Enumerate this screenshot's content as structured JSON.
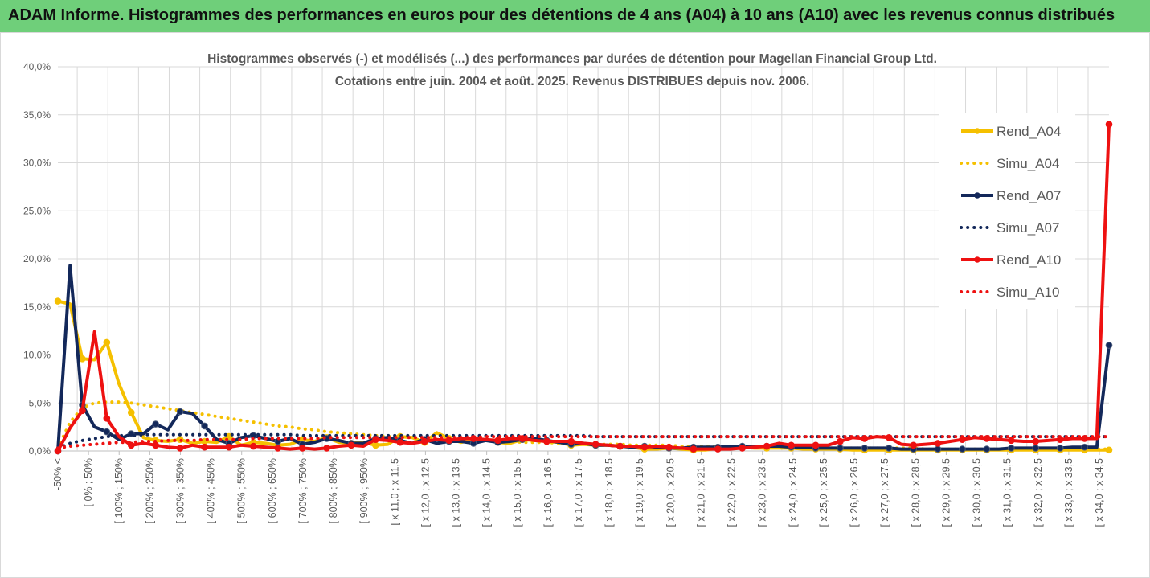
{
  "header": {
    "title": "ADAM Informe. Histogrammes des performances en euros pour des détentions de 4 ans (A04) à 10 ans (A10) avec les revenus connus distribués"
  },
  "colors": {
    "A04": "#f5c000",
    "A07": "#13285a",
    "A10": "#ee1111",
    "grid": "#d9d9d9",
    "title_bg": "#6fcf7a"
  },
  "chart_data": {
    "type": "line",
    "title_line1": "Histogrammes observés (-) et modélisés (...) des performances par durées de détention pour Magellan Financial Group Ltd.",
    "title_line2": "Cotations entre juin. 2004 et août. 2025. Revenus DISTRIBUES depuis nov. 2006.",
    "ylim": [
      0,
      40
    ],
    "yticks": [
      "0,0%",
      "5,0%",
      "10,0%",
      "15,0%",
      "20,0%",
      "25,0%",
      "30,0%",
      "35,0%",
      "40,0%"
    ],
    "x_labels": [
      "-50% <",
      "[ 0% ; 50%",
      "[ 100% ; 150%",
      "[ 200% ; 250%",
      "[ 300% ; 350%",
      "[ 400% ; 450%",
      "[ 500% ; 550%",
      "[ 600% ; 650%",
      "[ 700% ; 750%",
      "[ 800% ; 850%",
      "[ 900% ; 950%",
      "[ x 11,0 ; x 11,5",
      "[ x 12,0 ; x 12,5",
      "[ x 13,0 ; x 13,5",
      "[ x 14,0 ; x 14,5",
      "[ x 15,0 ; x 15,5",
      "[ x 16,0 ; x 16,5",
      "[ x 17,0 ; x 17,5",
      "[ x 18,0 ; x 18,5",
      "[ x 19,0 ; x 19,5",
      "[ x 20,0 ; x 20,5",
      "[ x 21,0 ; x 21,5",
      "[ x 22,0 ; x 22,5",
      "[ x 23,0 ; x 23,5",
      "[ x 24,0 ; x 24,5",
      "[ x 25,0 ; x 25,5",
      "[ x 26,0 ; x 26,5",
      "[ x 27,0 ; x 27,5",
      "[ x 28,0 ; x 28,5",
      "[ x 29,0 ; x 29,5",
      "[ x 30,0 ; x 30,5",
      "[ x 31,0 ; x 31,5",
      "[ x 32,0 ; x 32,5",
      "[ x 33,0 ; x 33,5",
      "[ x 34,0 ; x 34,5"
    ],
    "legend_position": "right",
    "grid": true,
    "series": [
      {
        "name": "Rend_A04",
        "style": "solid",
        "color": "#f5c000",
        "values": [
          15.6,
          15.3,
          9.6,
          9.5,
          11.3,
          7.0,
          4.0,
          1.4,
          1.1,
          1.0,
          1.2,
          0.8,
          1.0,
          0.9,
          1.5,
          0.6,
          0.9,
          0.8,
          0.6,
          0.7,
          1.2,
          1.0,
          1.4,
          0.9,
          0.8,
          0.9,
          0.6,
          0.7,
          1.5,
          1.4,
          0.9,
          1.9,
          1.3,
          0.9,
          1.2,
          1.2,
          0.9,
          0.8,
          1.2,
          1.1,
          1.0,
          0.9,
          0.6,
          0.7,
          0.6,
          0.6,
          0.5,
          0.4,
          0.2,
          0.2,
          0.3,
          0.2,
          0.1,
          0.1,
          0.3,
          0.3,
          0.4,
          0.3,
          0.3,
          0.3,
          0.3,
          0.2,
          0.2,
          0.2,
          0.2,
          0.1,
          0.1,
          0.1,
          0.1,
          0.1,
          0.1,
          0.1,
          0.1,
          0.1,
          0.1,
          0.1,
          0.1,
          0.1,
          0.1,
          0.1,
          0.1,
          0.1,
          0.1,
          0.1,
          0.1,
          0.1,
          0.1
        ]
      },
      {
        "name": "Simu_A04",
        "style": "dotted",
        "color": "#f5c000",
        "values": [
          0.3,
          3.0,
          4.5,
          5.0,
          5.1,
          5.1,
          5.0,
          4.8,
          4.6,
          4.4,
          4.2,
          4.0,
          3.8,
          3.6,
          3.4,
          3.2,
          3.0,
          2.8,
          2.6,
          2.5,
          2.3,
          2.2,
          2.0,
          1.9,
          1.8,
          1.7,
          1.6,
          1.5,
          1.5,
          1.4,
          1.3,
          1.3,
          1.2,
          1.2,
          1.1,
          1.1,
          1.0,
          1.0,
          0.9,
          0.9,
          0.9,
          0.8,
          0.8,
          0.8,
          0.7,
          0.7,
          0.7,
          0.6,
          0.6,
          0.6,
          0.6,
          0.5,
          0.5,
          0.5,
          0.5,
          0.5,
          0.4,
          0.4,
          0.4,
          0.4,
          0.4,
          0.4,
          0.3,
          0.3,
          0.3,
          0.3,
          0.3,
          0.3,
          0.3,
          0.3,
          0.3,
          0.2,
          0.2,
          0.2,
          0.2,
          0.2,
          0.2,
          0.2,
          0.2,
          0.2,
          0.2,
          0.2,
          0.2,
          0.2,
          0.2,
          0.2,
          0.2
        ]
      },
      {
        "name": "Rend_A07",
        "style": "solid",
        "color": "#13285a",
        "values": [
          0.0,
          19.3,
          4.8,
          2.5,
          2.0,
          1.2,
          1.8,
          1.8,
          2.8,
          2.2,
          4.1,
          3.9,
          2.6,
          1.2,
          0.8,
          1.4,
          1.6,
          1.3,
          1.0,
          1.3,
          0.7,
          0.9,
          1.3,
          1.1,
          0.8,
          0.8,
          1.3,
          1.4,
          1.1,
          0.8,
          1.2,
          0.8,
          1.0,
          1.0,
          0.8,
          1.1,
          0.9,
          1.0,
          1.2,
          1.3,
          1.1,
          0.9,
          0.7,
          0.8,
          0.6,
          0.6,
          0.5,
          0.4,
          0.5,
          0.4,
          0.3,
          0.3,
          0.4,
          0.4,
          0.4,
          0.5,
          0.5,
          0.5,
          0.5,
          0.5,
          0.4,
          0.4,
          0.3,
          0.3,
          0.3,
          0.3,
          0.3,
          0.3,
          0.3,
          0.2,
          0.2,
          0.2,
          0.2,
          0.2,
          0.2,
          0.2,
          0.2,
          0.2,
          0.3,
          0.3,
          0.3,
          0.3,
          0.3,
          0.4,
          0.4,
          0.4,
          11.0
        ]
      },
      {
        "name": "Simu_A07",
        "style": "dotted",
        "color": "#13285a",
        "values": [
          0.3,
          0.8,
          1.1,
          1.3,
          1.5,
          1.6,
          1.6,
          1.7,
          1.7,
          1.7,
          1.7,
          1.7,
          1.7,
          1.7,
          1.7,
          1.7,
          1.7,
          1.7,
          1.7,
          1.7,
          1.6,
          1.6,
          1.6,
          1.6,
          1.6,
          1.6,
          1.6,
          1.6,
          1.6,
          1.6,
          1.6,
          1.6,
          1.6,
          1.6,
          1.6,
          1.6,
          1.6,
          1.6,
          1.6,
          1.6,
          1.6,
          1.6,
          1.6,
          1.6,
          1.5,
          1.5,
          1.5,
          1.5,
          1.5,
          1.5,
          1.5,
          1.5,
          1.5,
          1.5,
          1.5,
          1.5,
          1.5,
          1.5,
          1.5,
          1.5,
          1.5,
          1.5,
          1.5,
          1.5,
          1.5,
          1.5,
          1.5,
          1.5,
          1.5,
          1.5,
          1.5,
          1.5,
          1.5,
          1.5,
          1.5,
          1.5,
          1.5,
          1.5,
          1.5,
          1.5,
          1.5,
          1.5,
          1.5,
          1.5,
          1.5,
          1.5,
          1.5
        ]
      },
      {
        "name": "Rend_A10",
        "style": "solid",
        "color": "#ee1111",
        "values": [
          0.0,
          2.4,
          4.2,
          12.4,
          3.4,
          1.5,
          0.6,
          0.8,
          0.6,
          0.4,
          0.3,
          0.6,
          0.4,
          0.4,
          0.4,
          0.6,
          0.5,
          0.4,
          0.3,
          0.2,
          0.3,
          0.2,
          0.3,
          0.5,
          0.6,
          0.5,
          1.2,
          1.1,
          0.9,
          0.8,
          1.0,
          1.2,
          1.1,
          1.3,
          1.3,
          1.2,
          1.1,
          1.3,
          1.3,
          1.1,
          1.0,
          1.0,
          1.0,
          0.8,
          0.7,
          0.6,
          0.5,
          0.5,
          0.4,
          0.5,
          0.4,
          0.3,
          0.2,
          0.2,
          0.2,
          0.2,
          0.3,
          0.4,
          0.5,
          0.8,
          0.6,
          0.6,
          0.6,
          0.6,
          1.0,
          1.4,
          1.3,
          1.5,
          1.4,
          0.7,
          0.6,
          0.7,
          0.8,
          1.0,
          1.2,
          1.4,
          1.3,
          1.2,
          1.1,
          1.0,
          1.0,
          1.1,
          1.2,
          1.3,
          1.3,
          1.3,
          34.0
        ]
      },
      {
        "name": "Simu_A10",
        "style": "dotted",
        "color": "#ee1111",
        "values": [
          0.3,
          0.5,
          0.6,
          0.7,
          0.8,
          0.9,
          0.9,
          1.0,
          1.0,
          1.1,
          1.1,
          1.1,
          1.2,
          1.2,
          1.2,
          1.2,
          1.3,
          1.3,
          1.3,
          1.3,
          1.3,
          1.3,
          1.4,
          1.4,
          1.4,
          1.4,
          1.4,
          1.4,
          1.4,
          1.4,
          1.4,
          1.4,
          1.4,
          1.4,
          1.4,
          1.5,
          1.5,
          1.5,
          1.5,
          1.5,
          1.5,
          1.5,
          1.5,
          1.5,
          1.5,
          1.5,
          1.5,
          1.5,
          1.5,
          1.5,
          1.5,
          1.5,
          1.5,
          1.5,
          1.5,
          1.5,
          1.5,
          1.5,
          1.5,
          1.5,
          1.5,
          1.5,
          1.5,
          1.5,
          1.5,
          1.5,
          1.5,
          1.5,
          1.5,
          1.5,
          1.5,
          1.5,
          1.5,
          1.5,
          1.5,
          1.5,
          1.5,
          1.5,
          1.5,
          1.5,
          1.5,
          1.5,
          1.5,
          1.5,
          1.5,
          1.5,
          1.5
        ]
      }
    ]
  }
}
